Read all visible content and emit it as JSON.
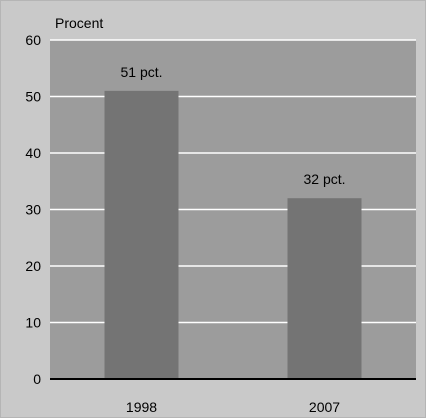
{
  "chart_data": {
    "type": "bar",
    "ylabel": "Procent",
    "categories": [
      "1998",
      "2007"
    ],
    "values": [
      51,
      32
    ],
    "data_labels": [
      "51 pct.",
      "32 pct."
    ],
    "ylim": [
      0,
      60
    ],
    "yticks": [
      0,
      10,
      20,
      30,
      40,
      50,
      60
    ],
    "grid": true,
    "colors": {
      "frame_bg": "#c9c9c9",
      "plot_bg": "#9c9c9c",
      "bar": "#747474",
      "gridline": "#ffffff",
      "axis": "#000000"
    }
  }
}
